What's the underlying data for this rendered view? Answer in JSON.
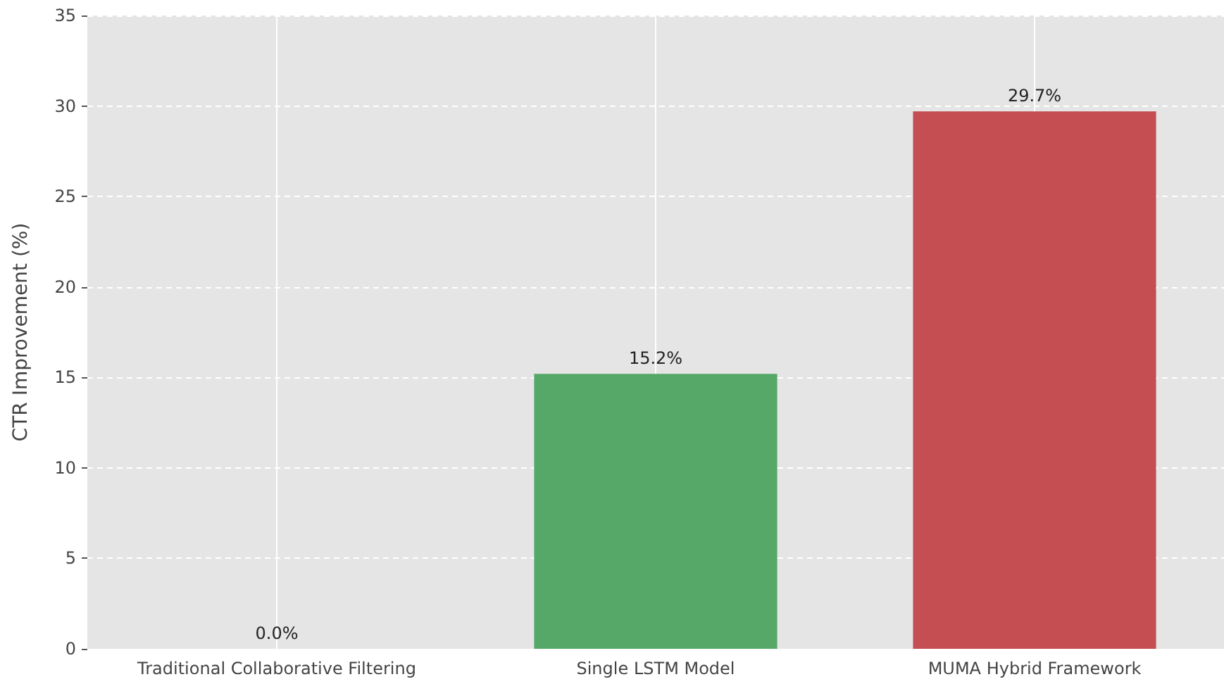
{
  "chart_data": {
    "type": "bar",
    "ylabel": "CTR Improvement (%)",
    "categories": [
      "Traditional Collaborative Filtering",
      "Single LSTM Model",
      "MUMA Hybrid Framework"
    ],
    "values": [
      0.0,
      15.2,
      29.7
    ],
    "colors": [
      "#4c72b0",
      "#55a868",
      "#c44e52"
    ],
    "value_labels": [
      "0.0%",
      "15.2%",
      "29.7%"
    ],
    "ylim": [
      0,
      35
    ],
    "yticks": [
      0,
      5,
      10,
      15,
      20,
      25,
      30,
      35
    ],
    "grid": true
  }
}
